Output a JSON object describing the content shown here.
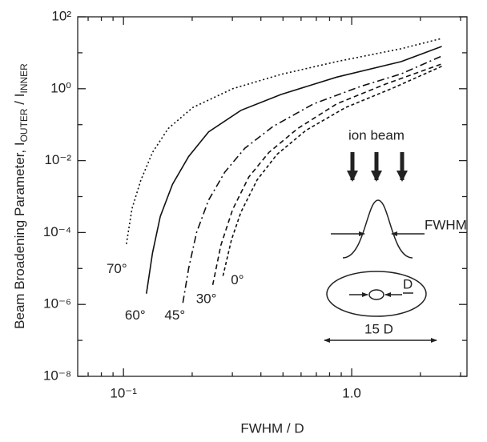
{
  "chart_data": {
    "type": "line",
    "xlabel": "FWHM  /  D",
    "ylabel": [
      "Beam Broadening Parameter, I",
      "OUTER",
      " / I",
      "INNER"
    ],
    "xscale": "log",
    "yscale": "log",
    "xlim": [
      0.063,
      3.2
    ],
    "ylim": [
      1e-08,
      100
    ],
    "xticks": [
      {
        "value": 0.1,
        "label": "10⁻¹"
      },
      {
        "value": 1,
        "label": "1.0"
      }
    ],
    "xminorticks": [
      0.07,
      0.08,
      0.09,
      0.2,
      0.3,
      0.4,
      0.5,
      0.6,
      0.7,
      0.8,
      0.9,
      2,
      3
    ],
    "yticks": [
      {
        "value": 100,
        "label": "10²"
      },
      {
        "value": 1,
        "label": "10⁰"
      },
      {
        "value": 0.01,
        "label": "10⁻²"
      },
      {
        "value": 0.0001,
        "label": "10⁻⁴"
      },
      {
        "value": 1e-06,
        "label": "10⁻⁶"
      },
      {
        "value": 1e-08,
        "label": "10⁻⁸"
      }
    ],
    "yminorticks": [
      10,
      0.1,
      0.001,
      1e-05,
      1e-07
    ],
    "series": [
      {
        "name": "70°",
        "color": "#111111",
        "style": "dotted",
        "x": [
          0.103,
          0.109,
          0.119,
          0.134,
          0.157,
          0.201,
          0.301,
          0.49,
          0.86,
          1.65,
          2.48
        ],
        "values": [
          4.8e-05,
          0.00046,
          0.0028,
          0.017,
          0.078,
          0.3,
          1,
          2.5,
          5.7,
          13,
          25
        ]
      },
      {
        "name": "60°",
        "color": "#111111",
        "style": "solid",
        "x": [
          0.126,
          0.134,
          0.145,
          0.164,
          0.193,
          0.236,
          0.327,
          0.49,
          0.86,
          1.65,
          2.48
        ],
        "values": [
          2e-06,
          2.7e-05,
          0.00028,
          0.0022,
          0.013,
          0.063,
          0.25,
          0.69,
          2.1,
          5.7,
          15
        ]
      },
      {
        "name": "45°",
        "color": "#111111",
        "style": "dashdot",
        "x": [
          0.182,
          0.193,
          0.209,
          0.236,
          0.278,
          0.34,
          0.452,
          0.68,
          1.1,
          1.65,
          2.48
        ],
        "values": [
          1.1e-06,
          1e-05,
          0.0001,
          0.0008,
          0.0048,
          0.022,
          0.089,
          0.38,
          1.17,
          2.6,
          8.1
        ]
      },
      {
        "name": "30°",
        "color": "#111111",
        "style": "dashed",
        "x": [
          0.246,
          0.267,
          0.301,
          0.354,
          0.434,
          0.58,
          0.86,
          1.41,
          2.48
        ],
        "values": [
          3.5e-06,
          4.4e-05,
          0.00044,
          0.0035,
          0.017,
          0.078,
          0.38,
          1.35,
          4.9
        ]
      },
      {
        "name": "0°",
        "color": "#111111",
        "style": "shortdash",
        "x": [
          0.273,
          0.297,
          0.327,
          0.385,
          0.471,
          0.63,
          0.94,
          1.52,
          2.48
        ],
        "values": [
          6.2e-06,
          6.2e-05,
          0.00037,
          0.0029,
          0.015,
          0.069,
          0.3,
          1.05,
          4.2
        ]
      }
    ],
    "inset_labels": [
      "ion beam",
      "FWHM",
      "D",
      "15 D"
    ]
  }
}
